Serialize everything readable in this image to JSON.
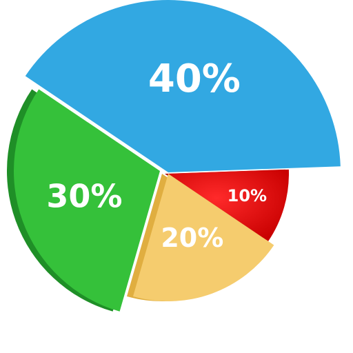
{
  "chart_data": {
    "type": "pie",
    "style": "exploded-3d",
    "slices": [
      {
        "label": "40%",
        "value": 40,
        "color": "#32A8E2",
        "shade": "#1F86BE"
      },
      {
        "label": "10%",
        "value": 10,
        "color": "#E80B0B",
        "shade": "#B00000"
      },
      {
        "label": "20%",
        "value": 20,
        "color": "#F5CC6E",
        "shade": "#E0AE40"
      },
      {
        "label": "30%",
        "value": 30,
        "color": "#35C13A",
        "shade": "#1F8F27"
      }
    ]
  }
}
